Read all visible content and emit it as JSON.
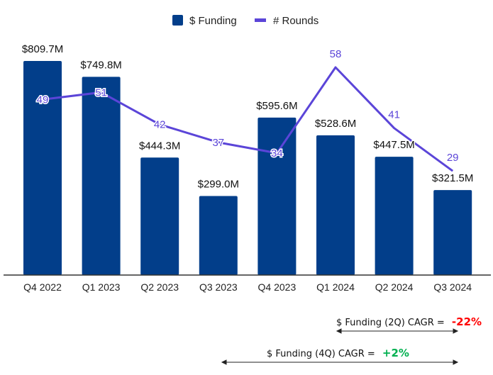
{
  "chart_data": {
    "type": "bar",
    "categories": [
      "Q4 2022",
      "Q1 2023",
      "Q2 2023",
      "Q3 2023",
      "Q4 2023",
      "Q1 2024",
      "Q2 2024",
      "Q3 2024"
    ],
    "series": [
      {
        "name": "$ Funding",
        "type": "bar",
        "color": "#023e8a",
        "values": [
          809.7,
          749.8,
          444.3,
          299.0,
          595.6,
          528.6,
          447.5,
          321.5
        ],
        "labels": [
          "$809.7M",
          "$749.8M",
          "$444.3M",
          "$299.0M",
          "$595.6M",
          "$528.6M",
          "$447.5M",
          "$321.5M"
        ]
      },
      {
        "name": "# Rounds",
        "type": "line",
        "color": "#5b45d8",
        "values": [
          49,
          51,
          42,
          37,
          34,
          58,
          41,
          29
        ]
      }
    ],
    "legend": "top-center",
    "grid": false
  },
  "annotations": [
    {
      "label": "$ Funding (2Q) CAGR = ",
      "value": "-22%",
      "color": "#ff0000"
    },
    {
      "label": "$ Funding (4Q) CAGR = ",
      "value": "+2%",
      "color": "#00b050"
    }
  ]
}
